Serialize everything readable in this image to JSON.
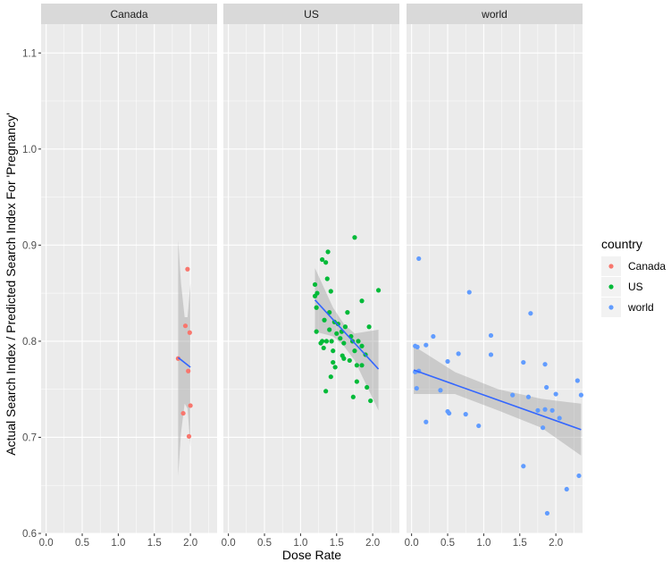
{
  "chart_data": {
    "type": "scatter",
    "xlabel": "Dose Rate",
    "ylabel": "Actual Search Index / Predicted Search Index For 'Pregnancy'",
    "xlim": [
      -0.07,
      2.37
    ],
    "ylim": [
      0.6,
      1.13
    ],
    "x_ticks": [
      "0.0",
      "0.5",
      "1.0",
      "1.5",
      "2.0"
    ],
    "y_ticks": [
      "0.6",
      "0.7",
      "0.8",
      "0.9",
      "1.0",
      "1.1"
    ],
    "legend": {
      "title": "country",
      "placement": "right",
      "entries": [
        {
          "label": "Canada",
          "color": "#F8766D"
        },
        {
          "label": "US",
          "color": "#00BA38"
        },
        {
          "label": "world",
          "color": "#619CFF"
        }
      ]
    },
    "fit_color": "#3366FF",
    "panel_background": "#EBEBEB",
    "strip_background": "#D9D9D9",
    "grid": true,
    "facets": [
      {
        "strip": "Canada",
        "color": "#F8766D",
        "points": [
          {
            "x": 1.83,
            "y": 0.782
          },
          {
            "x": 1.96,
            "y": 0.875
          },
          {
            "x": 1.93,
            "y": 0.816
          },
          {
            "x": 1.99,
            "y": 0.809
          },
          {
            "x": 1.97,
            "y": 0.769
          },
          {
            "x": 2.0,
            "y": 0.733
          },
          {
            "x": 1.9,
            "y": 0.725
          },
          {
            "x": 1.98,
            "y": 0.701
          }
        ],
        "fit": [
          {
            "x": 1.83,
            "y": 0.783
          },
          {
            "x": 2.0,
            "y": 0.773
          }
        ],
        "band": [
          {
            "x": 1.83,
            "lo": 0.66,
            "hi": 0.905
          },
          {
            "x": 1.87,
            "lo": 0.705,
            "hi": 0.86
          },
          {
            "x": 1.92,
            "lo": 0.735,
            "hi": 0.825
          },
          {
            "x": 1.96,
            "lo": 0.73,
            "hi": 0.825
          },
          {
            "x": 2.0,
            "lo": 0.69,
            "hi": 0.86
          }
        ]
      },
      {
        "strip": "US",
        "color": "#00BA38",
        "points": [
          {
            "x": 1.2,
            "y": 0.859
          },
          {
            "x": 1.23,
            "y": 0.85
          },
          {
            "x": 1.2,
            "y": 0.847
          },
          {
            "x": 1.22,
            "y": 0.835
          },
          {
            "x": 1.22,
            "y": 0.81
          },
          {
            "x": 1.3,
            "y": 0.885
          },
          {
            "x": 1.38,
            "y": 0.893
          },
          {
            "x": 1.35,
            "y": 0.882
          },
          {
            "x": 1.75,
            "y": 0.908
          },
          {
            "x": 2.08,
            "y": 0.853
          },
          {
            "x": 1.85,
            "y": 0.842
          },
          {
            "x": 1.37,
            "y": 0.865
          },
          {
            "x": 1.42,
            "y": 0.852
          },
          {
            "x": 1.4,
            "y": 0.83
          },
          {
            "x": 1.33,
            "y": 0.822
          },
          {
            "x": 1.3,
            "y": 0.8
          },
          {
            "x": 1.28,
            "y": 0.798
          },
          {
            "x": 1.32,
            "y": 0.793
          },
          {
            "x": 1.36,
            "y": 0.8
          },
          {
            "x": 1.4,
            "y": 0.812
          },
          {
            "x": 1.43,
            "y": 0.8
          },
          {
            "x": 1.45,
            "y": 0.79
          },
          {
            "x": 1.47,
            "y": 0.82
          },
          {
            "x": 1.5,
            "y": 0.808
          },
          {
            "x": 1.52,
            "y": 0.818
          },
          {
            "x": 1.55,
            "y": 0.803
          },
          {
            "x": 1.57,
            "y": 0.81
          },
          {
            "x": 1.6,
            "y": 0.798
          },
          {
            "x": 1.62,
            "y": 0.815
          },
          {
            "x": 1.65,
            "y": 0.83
          },
          {
            "x": 1.7,
            "y": 0.805
          },
          {
            "x": 1.72,
            "y": 0.8
          },
          {
            "x": 1.75,
            "y": 0.79
          },
          {
            "x": 1.8,
            "y": 0.8
          },
          {
            "x": 1.85,
            "y": 0.795
          },
          {
            "x": 1.9,
            "y": 0.786
          },
          {
            "x": 1.95,
            "y": 0.815
          },
          {
            "x": 1.45,
            "y": 0.778
          },
          {
            "x": 1.48,
            "y": 0.773
          },
          {
            "x": 1.42,
            "y": 0.763
          },
          {
            "x": 1.58,
            "y": 0.785
          },
          {
            "x": 1.6,
            "y": 0.782
          },
          {
            "x": 1.68,
            "y": 0.78
          },
          {
            "x": 1.78,
            "y": 0.775
          },
          {
            "x": 1.85,
            "y": 0.775
          },
          {
            "x": 1.35,
            "y": 0.748
          },
          {
            "x": 1.73,
            "y": 0.742
          },
          {
            "x": 1.78,
            "y": 0.758
          },
          {
            "x": 1.92,
            "y": 0.752
          },
          {
            "x": 1.97,
            "y": 0.738
          }
        ],
        "fit": [
          {
            "x": 1.2,
            "y": 0.843
          },
          {
            "x": 2.08,
            "y": 0.771
          }
        ],
        "band": [
          {
            "x": 1.2,
            "lo": 0.81,
            "hi": 0.876
          },
          {
            "x": 1.45,
            "lo": 0.805,
            "hi": 0.835
          },
          {
            "x": 1.6,
            "lo": 0.795,
            "hi": 0.818
          },
          {
            "x": 1.75,
            "lo": 0.78,
            "hi": 0.808
          },
          {
            "x": 2.08,
            "lo": 0.728,
            "hi": 0.812
          }
        ]
      },
      {
        "strip": "world",
        "color": "#619CFF",
        "points": [
          {
            "x": 0.1,
            "y": 0.886
          },
          {
            "x": 0.8,
            "y": 0.851
          },
          {
            "x": 1.65,
            "y": 0.829
          },
          {
            "x": 1.1,
            "y": 0.806
          },
          {
            "x": 0.3,
            "y": 0.805
          },
          {
            "x": 0.2,
            "y": 0.796
          },
          {
            "x": 0.05,
            "y": 0.795
          },
          {
            "x": 0.08,
            "y": 0.794
          },
          {
            "x": 0.65,
            "y": 0.787
          },
          {
            "x": 1.1,
            "y": 0.786
          },
          {
            "x": 0.5,
            "y": 0.779
          },
          {
            "x": 1.55,
            "y": 0.778
          },
          {
            "x": 1.85,
            "y": 0.776
          },
          {
            "x": 0.05,
            "y": 0.768
          },
          {
            "x": 0.1,
            "y": 0.769
          },
          {
            "x": 2.3,
            "y": 0.759
          },
          {
            "x": 0.4,
            "y": 0.749
          },
          {
            "x": 0.07,
            "y": 0.751
          },
          {
            "x": 1.4,
            "y": 0.744
          },
          {
            "x": 1.62,
            "y": 0.742
          },
          {
            "x": 2.0,
            "y": 0.745
          },
          {
            "x": 2.35,
            "y": 0.744
          },
          {
            "x": 0.75,
            "y": 0.724
          },
          {
            "x": 0.5,
            "y": 0.727
          },
          {
            "x": 0.52,
            "y": 0.725
          },
          {
            "x": 1.75,
            "y": 0.728
          },
          {
            "x": 1.85,
            "y": 0.729
          },
          {
            "x": 1.95,
            "y": 0.728
          },
          {
            "x": 1.87,
            "y": 0.752
          },
          {
            "x": 2.05,
            "y": 0.72
          },
          {
            "x": 0.2,
            "y": 0.716
          },
          {
            "x": 0.93,
            "y": 0.712
          },
          {
            "x": 1.82,
            "y": 0.71
          },
          {
            "x": 1.55,
            "y": 0.67
          },
          {
            "x": 2.32,
            "y": 0.66
          },
          {
            "x": 2.15,
            "y": 0.646
          },
          {
            "x": 1.88,
            "y": 0.621
          }
        ],
        "fit": [
          {
            "x": 0.03,
            "y": 0.77
          },
          {
            "x": 2.35,
            "y": 0.708
          }
        ],
        "band": [
          {
            "x": 0.03,
            "lo": 0.745,
            "hi": 0.795
          },
          {
            "x": 0.6,
            "lo": 0.745,
            "hi": 0.768
          },
          {
            "x": 1.2,
            "lo": 0.728,
            "hi": 0.75
          },
          {
            "x": 1.8,
            "lo": 0.71,
            "hi": 0.74
          },
          {
            "x": 2.35,
            "lo": 0.681,
            "hi": 0.735
          }
        ]
      }
    ]
  }
}
